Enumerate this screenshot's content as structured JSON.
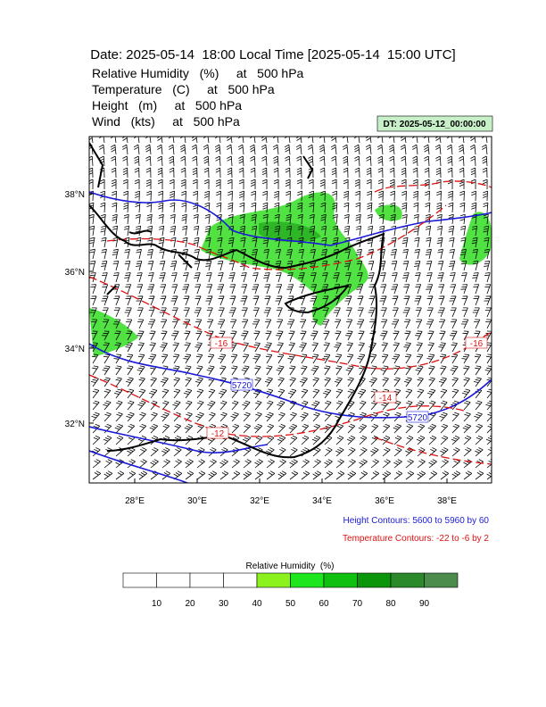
{
  "header": {
    "title": "Date: 2025-05-14  18:00 Local Time [2025-05-14  15:00 UTC]",
    "lines": [
      "Relative Humidity   (%)     at   500 hPa",
      "Temperature   (C)     at   500 hPa",
      "Height   (m)     at   500 hPa",
      "Wind   (kts)     at   500 hPa"
    ],
    "dt_label": "DT: 2025-05-12_00:00:00"
  },
  "map": {
    "lat_ticks": [
      "38°N",
      "36°N",
      "34°N",
      "32°N"
    ],
    "lon_ticks": [
      "28°E",
      "30°E",
      "32°E",
      "34°E",
      "36°E",
      "38°E"
    ],
    "contour_labels": {
      "height": [
        "5720",
        "5720"
      ],
      "temperature": [
        "-16",
        "-16",
        "-14",
        "-12"
      ]
    }
  },
  "legend": {
    "height": "Height Contours: 5600 to 5960 by 60",
    "temperature": "Temperature Contours: -22 to -6 by 2"
  },
  "colorbar": {
    "title": "Relative Humidity  (%)",
    "labels": [
      10,
      20,
      30,
      40,
      50,
      60,
      70,
      80,
      90
    ],
    "colors": [
      "#ffffff",
      "#ffffff",
      "#ffffff",
      "#ffffff",
      "#8cf21e",
      "#1ee61e",
      "#10c010",
      "#0a960a",
      "#2a8a2a",
      "#4b8b4b"
    ]
  }
}
